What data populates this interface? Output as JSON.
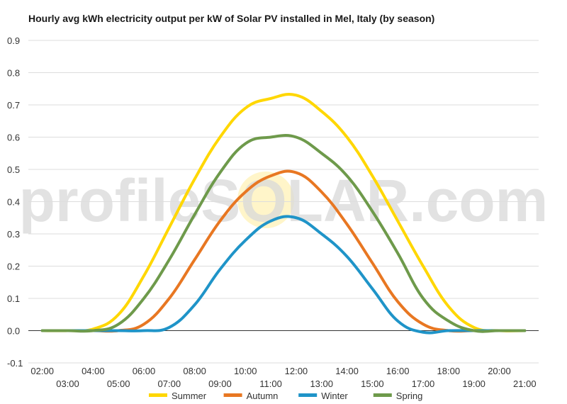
{
  "chart_data": {
    "type": "line",
    "title": "Hourly avg kWh electricity output per kW of Solar PV installed in Mel, Italy (by season)",
    "watermark": "profileSOLAR.com",
    "xlabel": "",
    "ylabel": "",
    "ylim": [
      -0.1,
      0.9
    ],
    "yticks": [
      -0.1,
      0.0,
      0.1,
      0.2,
      0.3,
      0.4,
      0.5,
      0.6,
      0.7,
      0.8,
      0.9
    ],
    "ytick_labels": [
      "-0.1",
      "0.0",
      "0.1",
      "0.2",
      "0.3",
      "0.4",
      "0.5",
      "0.6",
      "0.7",
      "0.8",
      "0.9"
    ],
    "x_hours": [
      2,
      3,
      4,
      5,
      6,
      7,
      8,
      9,
      10,
      11,
      12,
      13,
      14,
      15,
      16,
      17,
      18,
      19,
      20,
      21
    ],
    "xtick_labels": [
      "02:00",
      "03:00",
      "04:00",
      "05:00",
      "06:00",
      "07:00",
      "08:00",
      "09:00",
      "10:00",
      "11:00",
      "12:00",
      "13:00",
      "14:00",
      "15:00",
      "16:00",
      "17:00",
      "18:00",
      "19:00",
      "20:00",
      "21:00"
    ],
    "grid": true,
    "legend_position": "bottom",
    "series": [
      {
        "name": "Summer",
        "color": "#FFD700",
        "values": [
          0.0,
          0.0,
          0.005,
          0.05,
          0.17,
          0.32,
          0.47,
          0.6,
          0.69,
          0.72,
          0.73,
          0.68,
          0.6,
          0.48,
          0.34,
          0.2,
          0.075,
          0.01,
          0.0,
          0.0
        ]
      },
      {
        "name": "Autumn",
        "color": "#E87722",
        "values": [
          0.0,
          0.0,
          0.0,
          0.0,
          0.02,
          0.1,
          0.22,
          0.34,
          0.43,
          0.48,
          0.49,
          0.43,
          0.33,
          0.21,
          0.09,
          0.02,
          0.0,
          0.0,
          0.0,
          0.0
        ]
      },
      {
        "name": "Winter",
        "color": "#1F94C8",
        "values": [
          0.0,
          0.0,
          0.0,
          0.0,
          0.0,
          0.01,
          0.08,
          0.19,
          0.28,
          0.34,
          0.35,
          0.3,
          0.23,
          0.13,
          0.03,
          -0.005,
          0.0,
          0.0,
          0.0,
          0.0
        ]
      },
      {
        "name": "Spring",
        "color": "#6E9A4B",
        "values": [
          0.0,
          0.0,
          0.0,
          0.02,
          0.1,
          0.22,
          0.36,
          0.49,
          0.58,
          0.6,
          0.6,
          0.55,
          0.48,
          0.37,
          0.24,
          0.1,
          0.03,
          0.0,
          0.0,
          0.0
        ]
      }
    ]
  }
}
